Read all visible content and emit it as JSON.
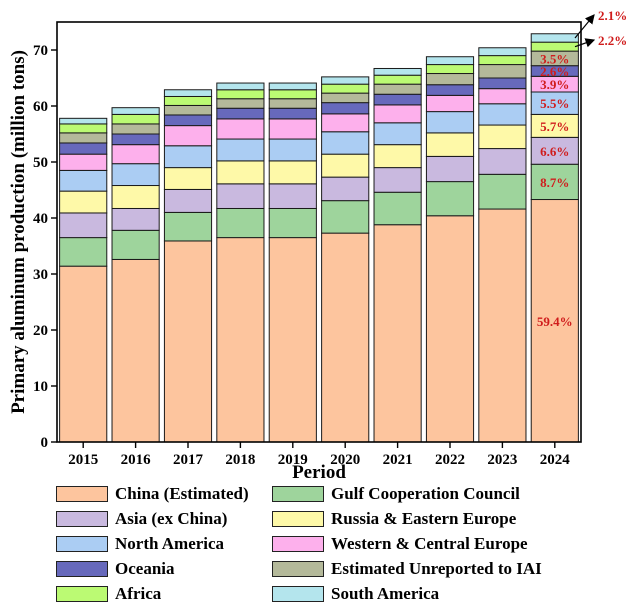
{
  "chart_data": {
    "type": "bar",
    "stacked": true,
    "xlabel": "Period",
    "ylabel": "Primary aluminum production (million tons)",
    "ylim": [
      0,
      75
    ],
    "yticks": [
      "0",
      "10",
      "20",
      "30",
      "40",
      "50",
      "60",
      "70"
    ],
    "categories": [
      "2015",
      "2016",
      "2017",
      "2018",
      "2019",
      "2020",
      "2021",
      "2022",
      "2023",
      "2024"
    ],
    "series": [
      {
        "name": "China (Estimated)",
        "color": "#FDC59E",
        "values": [
          31.4,
          32.6,
          35.9,
          36.5,
          36.5,
          37.3,
          38.8,
          40.4,
          41.6,
          43.3
        ]
      },
      {
        "name": "Gulf Cooperation Council",
        "color": "#9ED49C",
        "values": [
          5.1,
          5.2,
          5.1,
          5.2,
          5.2,
          5.8,
          5.8,
          6.1,
          6.2,
          6.3
        ]
      },
      {
        "name": "Asia (ex China)",
        "color": "#C9B9DF",
        "values": [
          4.4,
          3.9,
          4.1,
          4.4,
          4.4,
          4.2,
          4.4,
          4.5,
          4.6,
          4.8
        ]
      },
      {
        "name": "Russia & Eastern Europe",
        "color": "#FEF9A8",
        "values": [
          3.9,
          4.1,
          3.9,
          4.1,
          4.1,
          4.1,
          4.1,
          4.2,
          4.2,
          4.1
        ]
      },
      {
        "name": "North America",
        "color": "#ABCDF3",
        "values": [
          3.7,
          3.9,
          3.9,
          3.9,
          3.9,
          4.0,
          3.9,
          3.8,
          3.8,
          4.0
        ]
      },
      {
        "name": "Western & Central Europe",
        "color": "#FDB0EC",
        "values": [
          2.9,
          3.4,
          3.6,
          3.6,
          3.6,
          3.2,
          3.2,
          2.9,
          2.7,
          2.8
        ]
      },
      {
        "name": "Oceania",
        "color": "#6769BC",
        "values": [
          2.0,
          1.9,
          1.9,
          1.9,
          1.9,
          2.0,
          1.9,
          1.9,
          1.9,
          1.9
        ]
      },
      {
        "name": "Estimated Unreported to IAI",
        "color": "#B4B99A",
        "values": [
          1.8,
          1.8,
          1.7,
          1.7,
          1.7,
          1.7,
          1.8,
          2.0,
          2.4,
          2.6
        ]
      },
      {
        "name": "Africa",
        "color": "#BBFA73",
        "values": [
          1.6,
          1.7,
          1.6,
          1.6,
          1.6,
          1.6,
          1.6,
          1.6,
          1.6,
          1.6
        ]
      },
      {
        "name": "South America",
        "color": "#B4E5ED",
        "values": [
          1.0,
          1.2,
          1.2,
          1.2,
          1.2,
          1.3,
          1.2,
          1.4,
          1.4,
          1.5
        ]
      }
    ],
    "annotations": {
      "pct_color": "#D01C1C",
      "inside": [
        "59.4%",
        "8.7%",
        "6.6%",
        "5.7%",
        "5.5%",
        "3.9%",
        "2.6%",
        "3.5%"
      ],
      "inside_colors": [
        "#D01C1C",
        "#D01C1C",
        "#D01C1C",
        "#D01C1C",
        "#D01C1C",
        "#D01C1C",
        "#D01C1C",
        "#D01C1C"
      ],
      "outside_top": "2.1%",
      "outside_bottom": "2.2%"
    },
    "legend_position": "bottom"
  }
}
